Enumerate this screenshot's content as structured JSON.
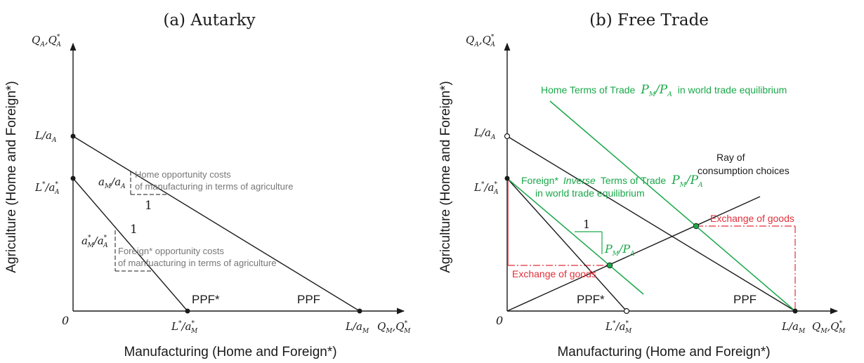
{
  "colors": {
    "ink": "#1a1a1a",
    "gray": "#777777",
    "green": "#1aa84a",
    "red": "#e0303a"
  },
  "panel_a": {
    "title": "(a) Autarky",
    "y_axis_var": "Q_A, Q*_A",
    "x_axis_var": "Q_M, Q*_M",
    "y_axis_title": "Agriculture (Home and Foreign*)",
    "x_axis_title": "Manufacturing (Home and Foreign*)",
    "origin": "0",
    "ppf_home": "PPF",
    "ppf_foreign": "PPF*",
    "home_y_intercept": "L/a_A",
    "foreign_y_intercept": "L*/a*_A",
    "home_x_intercept": "L/a_M",
    "foreign_x_intercept": "L*/a*_M",
    "home_slope_label": "a_M/a_A",
    "foreign_slope_label": "a*_M/a*_A",
    "slope_run": "1",
    "home_opportunity_line1": "Home opportunity costs",
    "home_opportunity_line2": "of manufacturing in terms of agriculture",
    "foreign_opportunity_line1": "Foreign* opportunity costs",
    "foreign_opportunity_line2": "of manfuacturing in terms of agriculture"
  },
  "panel_b": {
    "title": "(b) Free Trade",
    "y_axis_var": "Q_A, Q*_A",
    "x_axis_var": "Q_M, Q*_M",
    "y_axis_title": "Agriculture (Home and Foreign*)",
    "x_axis_title": "Manufacturing (Home and Foreign*)",
    "origin": "0",
    "ppf_home": "PPF",
    "ppf_foreign": "PPF*",
    "home_y_intercept": "L/a_A",
    "foreign_y_intercept": "L*/a*_A",
    "home_x_intercept": "L/a_M",
    "foreign_x_intercept": "L*/a*_M",
    "home_tot_text": "Home Terms of Trade",
    "home_tot_suffix": "in world trade equilibrium",
    "foreign_tot_text_prefix": "Foreign*",
    "foreign_tot_text_inverse": "Inverse",
    "foreign_tot_text_rest": "Terms of Trade",
    "foreign_tot_line2": "in world trade equilibrium",
    "price_ratio": "P_M/P_A",
    "slope_run": "1",
    "ray_line1": "Ray of",
    "ray_line2": "consumption choices",
    "exchange_label": "Exchange of goods"
  }
}
